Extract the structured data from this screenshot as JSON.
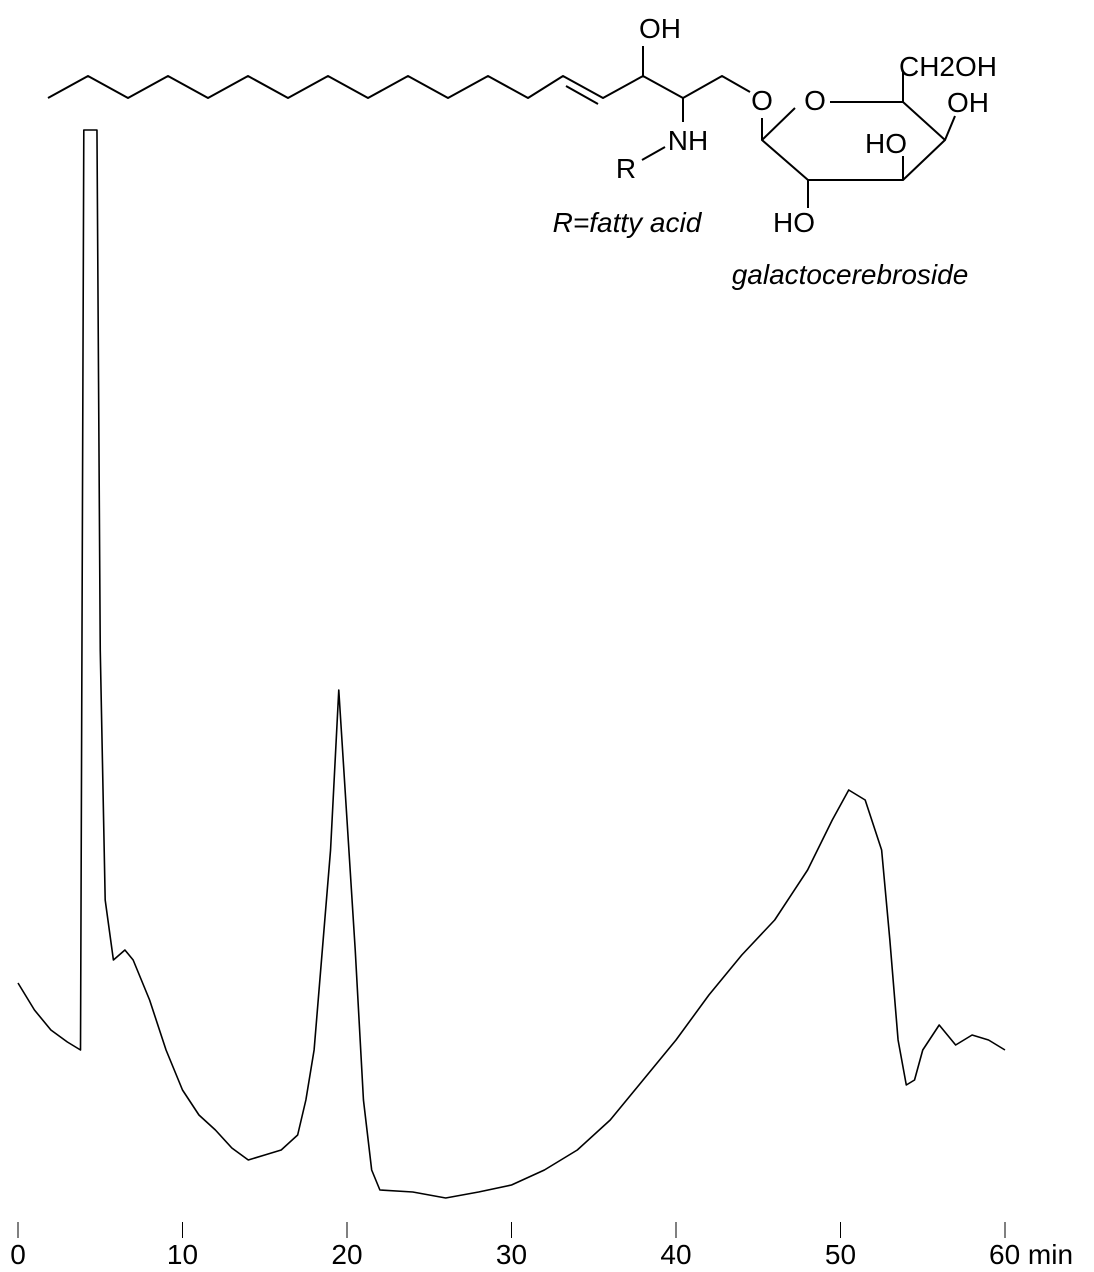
{
  "chart_data": {
    "type": "line",
    "x": [
      0,
      1,
      2,
      3,
      3.8,
      4.0,
      4.8,
      5.0,
      5.3,
      5.8,
      6.5,
      7,
      8,
      9,
      10,
      11,
      12,
      13,
      14,
      15,
      16,
      17,
      17.5,
      18,
      18.5,
      19,
      19.5,
      20,
      20.5,
      21,
      21.5,
      22,
      24,
      26,
      28,
      30,
      32,
      34,
      36,
      38,
      40,
      42,
      44,
      46,
      48,
      49.5,
      50.5,
      51.5,
      52.5,
      53,
      53.5,
      54,
      54.5,
      55,
      56,
      57,
      58,
      59,
      60
    ],
    "series": [
      {
        "color": "#000000",
        "values": [
          22.7,
          20,
          18,
          16.8,
          16,
          108,
          108,
          56,
          31,
          25,
          26,
          25,
          21,
          16,
          12,
          9.5,
          8,
          6.2,
          5,
          5.5,
          6,
          7.5,
          11,
          16,
          26,
          36,
          52,
          39,
          26,
          11,
          4,
          2,
          1.8,
          1.2,
          1.8,
          2.5,
          4,
          6,
          9,
          13,
          17,
          21.5,
          25.5,
          29,
          34,
          39,
          42,
          41,
          36,
          27,
          17,
          12.5,
          13,
          16,
          18.5,
          16.5,
          17.5,
          17,
          16
        ]
      }
    ],
    "xlim": [
      0,
      60
    ],
    "xticks": [
      0,
      10,
      20,
      30,
      40,
      50,
      {
        "value": 60,
        "label": "60 min"
      }
    ],
    "ylim": [
      0,
      108
    ],
    "grid": false,
    "annotations": [
      "OH",
      "NH",
      "R",
      "O",
      "O",
      "CH2OH",
      "OH",
      "HO",
      "HO",
      "R=fatty acid",
      "galactocerebroside"
    ]
  }
}
